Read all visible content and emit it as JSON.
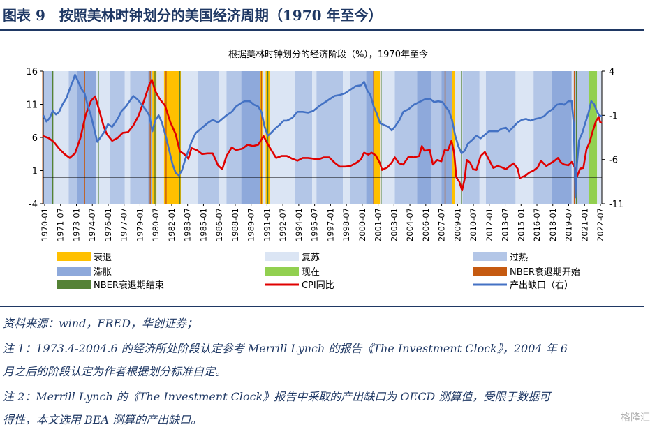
{
  "figure": {
    "title": "图表 9　按照美林时钟划分的美国经济周期（1970 年至今）"
  },
  "notes": {
    "source": "资料来源：wind，FRED，华创证券；",
    "note1_line1": "注 1：1973.4-2004.6 的经济所处阶段认定参考 Merrill Lynch 的报告《The Investment Clock》，2004 年 6",
    "note1_line2": "月之后的阶段认定为作者根据划分标准自定。",
    "note2_line1": "注 2：Merrill Lynch 的《The Investment Clock》报告中采取的产出缺口为 OECD 测算值，受限于数据可",
    "note2_line2": "得性，本文选用 BEA 测算的产出缺口。"
  },
  "watermark": "格隆汇",
  "colors": {
    "recession": "#ffc000",
    "recovery": "#dbe5f4",
    "overheat": "#b3c6e7",
    "stagflation": "#8ea9db",
    "now": "#92d050",
    "nber_start": "#c55a11",
    "nber_end": "#548235",
    "cpi": "#e00000",
    "output_gap": "#4472c4",
    "text": "#1f3864"
  },
  "chart_data": {
    "type": "line",
    "title": "根据美林时钟划分的经济阶段（%），1970年至今",
    "x_start": 1970.0,
    "x_end": 2022.75,
    "y_left": {
      "min": -4,
      "max": 16,
      "ticks": [
        "16",
        "11",
        "6",
        "1",
        "-4"
      ]
    },
    "y_right": {
      "min": -11,
      "max": 4,
      "ticks": [
        "4",
        "-1",
        "-6",
        "-11"
      ]
    },
    "x_tick_labels": [
      "1970-01",
      "1971-07",
      "1973-01",
      "1974-07",
      "1976-01",
      "1977-07",
      "1979-01",
      "1980-07",
      "1982-01",
      "1983-07",
      "1985-01",
      "1986-07",
      "1988-01",
      "1989-07",
      "1991-01",
      "1992-07",
      "1994-01",
      "1995-07",
      "1997-01",
      "1998-07",
      "2000-01",
      "2001-07",
      "2003-01",
      "2004-07",
      "2006-01",
      "2007-07",
      "2009-01",
      "2010-07",
      "2012-01",
      "2013-07",
      "2015-01",
      "2016-07",
      "2018-01",
      "2019-07",
      "2021-01",
      "2022-07"
    ],
    "legend": [
      {
        "key": "recession",
        "label": "衰退",
        "kind": "box"
      },
      {
        "key": "recovery",
        "label": "复苏",
        "kind": "box"
      },
      {
        "key": "overheat",
        "label": "过热",
        "kind": "box"
      },
      {
        "key": "stagflation",
        "label": "滞胀",
        "kind": "box"
      },
      {
        "key": "now",
        "label": "现在",
        "kind": "box"
      },
      {
        "key": "nber_start",
        "label": "NBER衰退期开始",
        "kind": "box"
      },
      {
        "key": "nber_end",
        "label": "NBER衰退期结束",
        "kind": "box"
      },
      {
        "key": "cpi",
        "label": "CPI同比",
        "kind": "line"
      },
      {
        "key": "output_gap",
        "label": "产出缺口（右）",
        "kind": "line"
      }
    ],
    "phases": [
      {
        "start": 1970.0,
        "end": 1970.9,
        "phase": "overheat"
      },
      {
        "start": 1970.9,
        "end": 1972.4,
        "phase": "recovery"
      },
      {
        "start": 1972.4,
        "end": 1973.2,
        "phase": "overheat"
      },
      {
        "start": 1973.2,
        "end": 1975.0,
        "phase": "stagflation"
      },
      {
        "start": 1975.0,
        "end": 1976.3,
        "phase": "recovery"
      },
      {
        "start": 1976.3,
        "end": 1977.7,
        "phase": "overheat"
      },
      {
        "start": 1977.7,
        "end": 1978.2,
        "phase": "recovery"
      },
      {
        "start": 1978.2,
        "end": 1979.9,
        "phase": "overheat"
      },
      {
        "start": 1979.9,
        "end": 1980.3,
        "phase": "stagflation"
      },
      {
        "start": 1980.3,
        "end": 1980.7,
        "phase": "recession"
      },
      {
        "start": 1980.7,
        "end": 1981.4,
        "phase": "recovery"
      },
      {
        "start": 1981.4,
        "end": 1983.0,
        "phase": "recession"
      },
      {
        "start": 1983.0,
        "end": 1984.6,
        "phase": "recovery"
      },
      {
        "start": 1984.6,
        "end": 1986.6,
        "phase": "overheat"
      },
      {
        "start": 1986.6,
        "end": 1987.3,
        "phase": "recovery"
      },
      {
        "start": 1987.3,
        "end": 1988.7,
        "phase": "overheat"
      },
      {
        "start": 1988.7,
        "end": 1990.5,
        "phase": "stagflation"
      },
      {
        "start": 1990.5,
        "end": 1990.7,
        "phase": "recession"
      },
      {
        "start": 1990.7,
        "end": 1991.0,
        "phase": "recovery"
      },
      {
        "start": 1991.0,
        "end": 1991.4,
        "phase": "recession"
      },
      {
        "start": 1991.4,
        "end": 1993.8,
        "phase": "recovery"
      },
      {
        "start": 1993.8,
        "end": 1995.4,
        "phase": "overheat"
      },
      {
        "start": 1995.4,
        "end": 1995.8,
        "phase": "recovery"
      },
      {
        "start": 1995.8,
        "end": 1998.3,
        "phase": "overheat"
      },
      {
        "start": 1998.3,
        "end": 1999.0,
        "phase": "recovery"
      },
      {
        "start": 1999.0,
        "end": 2000.5,
        "phase": "overheat"
      },
      {
        "start": 2000.5,
        "end": 2001.2,
        "phase": "stagflation"
      },
      {
        "start": 2001.2,
        "end": 2001.8,
        "phase": "recession"
      },
      {
        "start": 2001.8,
        "end": 2003.2,
        "phase": "recovery"
      },
      {
        "start": 2003.2,
        "end": 2005.3,
        "phase": "overheat"
      },
      {
        "start": 2005.3,
        "end": 2006.6,
        "phase": "stagflation"
      },
      {
        "start": 2006.6,
        "end": 2007.6,
        "phase": "overheat"
      },
      {
        "start": 2007.6,
        "end": 2008.6,
        "phase": "stagflation"
      },
      {
        "start": 2008.6,
        "end": 2008.9,
        "phase": "recession"
      },
      {
        "start": 2008.9,
        "end": 2009.6,
        "phase": "recovery"
      },
      {
        "start": 2009.6,
        "end": 2011.2,
        "phase": "overheat"
      },
      {
        "start": 2011.2,
        "end": 2011.8,
        "phase": "recovery"
      },
      {
        "start": 2011.8,
        "end": 2014.6,
        "phase": "overheat"
      },
      {
        "start": 2014.6,
        "end": 2016.3,
        "phase": "recovery"
      },
      {
        "start": 2016.3,
        "end": 2018.0,
        "phase": "overheat"
      },
      {
        "start": 2018.0,
        "end": 2019.9,
        "phase": "stagflation"
      },
      {
        "start": 2019.9,
        "end": 2020.2,
        "phase": "recovery"
      },
      {
        "start": 2020.2,
        "end": 2021.5,
        "phase": "overheat"
      },
      {
        "start": 2021.5,
        "end": 2022.3,
        "phase": "now"
      },
      {
        "start": 2022.3,
        "end": 2022.75,
        "phase": "recovery"
      }
    ],
    "nber_start_dates": [
      1969.95,
      1973.9,
      1980.1,
      1981.6,
      1990.6,
      2001.2,
      2007.95,
      2020.15
    ],
    "nber_end_dates": [
      1970.9,
      1975.2,
      1980.55,
      1982.9,
      1991.2,
      2001.9,
      2009.5,
      2020.35
    ],
    "cpi": [
      [
        1970.0,
        6.2
      ],
      [
        1970.5,
        5.9
      ],
      [
        1971.0,
        5.3
      ],
      [
        1971.5,
        4.3
      ],
      [
        1972.0,
        3.5
      ],
      [
        1972.5,
        2.9
      ],
      [
        1973.0,
        3.6
      ],
      [
        1973.5,
        5.9
      ],
      [
        1974.0,
        9.4
      ],
      [
        1974.5,
        11.5
      ],
      [
        1974.9,
        12.2
      ],
      [
        1975.3,
        10.0
      ],
      [
        1975.7,
        7.7
      ],
      [
        1976.0,
        6.5
      ],
      [
        1976.5,
        5.5
      ],
      [
        1977.0,
        5.9
      ],
      [
        1977.5,
        6.7
      ],
      [
        1978.0,
        6.8
      ],
      [
        1978.5,
        7.8
      ],
      [
        1979.0,
        9.3
      ],
      [
        1979.5,
        11.5
      ],
      [
        1980.0,
        13.9
      ],
      [
        1980.25,
        14.7
      ],
      [
        1980.6,
        12.9
      ],
      [
        1981.0,
        11.8
      ],
      [
        1981.5,
        10.8
      ],
      [
        1982.0,
        8.3
      ],
      [
        1982.5,
        6.5
      ],
      [
        1982.9,
        3.9
      ],
      [
        1983.3,
        3.5
      ],
      [
        1983.7,
        2.8
      ],
      [
        1984.0,
        4.4
      ],
      [
        1984.5,
        4.1
      ],
      [
        1985.0,
        3.5
      ],
      [
        1985.5,
        3.6
      ],
      [
        1986.0,
        3.6
      ],
      [
        1986.5,
        1.8
      ],
      [
        1986.9,
        1.2
      ],
      [
        1987.3,
        3.2
      ],
      [
        1987.8,
        4.5
      ],
      [
        1988.2,
        4.1
      ],
      [
        1988.8,
        4.3
      ],
      [
        1989.3,
        4.9
      ],
      [
        1989.8,
        4.7
      ],
      [
        1990.3,
        4.9
      ],
      [
        1990.8,
        6.2
      ],
      [
        1991.2,
        5.0
      ],
      [
        1991.6,
        3.9
      ],
      [
        1992.0,
        2.9
      ],
      [
        1992.5,
        3.2
      ],
      [
        1993.0,
        3.2
      ],
      [
        1993.5,
        2.8
      ],
      [
        1994.0,
        2.5
      ],
      [
        1994.5,
        2.9
      ],
      [
        1995.0,
        2.9
      ],
      [
        1995.5,
        2.8
      ],
      [
        1996.0,
        2.7
      ],
      [
        1996.5,
        3.0
      ],
      [
        1997.0,
        3.0
      ],
      [
        1997.5,
        2.2
      ],
      [
        1998.0,
        1.6
      ],
      [
        1998.5,
        1.6
      ],
      [
        1999.0,
        1.7
      ],
      [
        1999.5,
        2.1
      ],
      [
        2000.0,
        2.7
      ],
      [
        2000.3,
        3.7
      ],
      [
        2000.7,
        3.4
      ],
      [
        2001.0,
        3.7
      ],
      [
        2001.4,
        3.3
      ],
      [
        2001.8,
        2.1
      ],
      [
        2002.0,
        1.1
      ],
      [
        2002.5,
        1.5
      ],
      [
        2002.9,
        2.2
      ],
      [
        2003.2,
        3.0
      ],
      [
        2003.6,
        2.1
      ],
      [
        2004.0,
        1.9
      ],
      [
        2004.5,
        3.1
      ],
      [
        2005.0,
        3.0
      ],
      [
        2005.5,
        3.2
      ],
      [
        2005.75,
        4.7
      ],
      [
        2006.0,
        4.0
      ],
      [
        2006.5,
        4.1
      ],
      [
        2006.8,
        1.9
      ],
      [
        2007.2,
        2.6
      ],
      [
        2007.6,
        2.4
      ],
      [
        2007.9,
        4.1
      ],
      [
        2008.2,
        4.0
      ],
      [
        2008.55,
        5.5
      ],
      [
        2008.8,
        3.7
      ],
      [
        2009.0,
        0.0
      ],
      [
        2009.3,
        -0.7
      ],
      [
        2009.55,
        -2.0
      ],
      [
        2009.8,
        -0.2
      ],
      [
        2010.0,
        2.6
      ],
      [
        2010.3,
        2.2
      ],
      [
        2010.6,
        1.2
      ],
      [
        2010.9,
        1.1
      ],
      [
        2011.3,
        3.2
      ],
      [
        2011.7,
        3.8
      ],
      [
        2012.0,
        2.9
      ],
      [
        2012.5,
        1.4
      ],
      [
        2012.9,
        1.7
      ],
      [
        2013.3,
        1.5
      ],
      [
        2013.7,
        1.2
      ],
      [
        2014.0,
        1.6
      ],
      [
        2014.4,
        2.1
      ],
      [
        2014.8,
        1.3
      ],
      [
        2015.0,
        -0.1
      ],
      [
        2015.5,
        0.2
      ],
      [
        2015.9,
        0.7
      ],
      [
        2016.3,
        1.0
      ],
      [
        2016.7,
        1.5
      ],
      [
        2017.0,
        2.5
      ],
      [
        2017.5,
        1.7
      ],
      [
        2017.9,
        2.1
      ],
      [
        2018.3,
        2.5
      ],
      [
        2018.6,
        2.9
      ],
      [
        2018.9,
        2.2
      ],
      [
        2019.2,
        1.9
      ],
      [
        2019.6,
        1.8
      ],
      [
        2019.9,
        2.3
      ],
      [
        2020.2,
        1.5
      ],
      [
        2020.4,
        0.1
      ],
      [
        2020.7,
        1.3
      ],
      [
        2021.0,
        1.4
      ],
      [
        2021.3,
        4.2
      ],
      [
        2021.6,
        5.3
      ],
      [
        2021.9,
        7.0
      ],
      [
        2022.2,
        8.5
      ],
      [
        2022.45,
        9.1
      ],
      [
        2022.6,
        8.3
      ],
      [
        2022.75,
        8.2
      ]
    ],
    "output_gap": [
      [
        1970.0,
        -1.0
      ],
      [
        1970.3,
        -1.7
      ],
      [
        1970.6,
        -1.3
      ],
      [
        1970.9,
        -0.5
      ],
      [
        1971.2,
        -0.9
      ],
      [
        1971.5,
        -0.6
      ],
      [
        1971.8,
        0.2
      ],
      [
        1972.2,
        1.0
      ],
      [
        1972.5,
        2.0
      ],
      [
        1972.8,
        2.9
      ],
      [
        1973.0,
        3.6
      ],
      [
        1973.3,
        2.8
      ],
      [
        1973.6,
        2.0
      ],
      [
        1973.9,
        1.5
      ],
      [
        1974.2,
        0.1
      ],
      [
        1974.5,
        -1.0
      ],
      [
        1974.8,
        -2.5
      ],
      [
        1975.1,
        -4.0
      ],
      [
        1975.4,
        -3.5
      ],
      [
        1975.8,
        -2.8
      ],
      [
        1976.1,
        -2.0
      ],
      [
        1976.5,
        -2.3
      ],
      [
        1976.8,
        -1.8
      ],
      [
        1977.1,
        -1.2
      ],
      [
        1977.4,
        -0.5
      ],
      [
        1977.8,
        0.0
      ],
      [
        1978.1,
        0.5
      ],
      [
        1978.5,
        1.2
      ],
      [
        1978.9,
        0.8
      ],
      [
        1979.3,
        0.2
      ],
      [
        1979.7,
        -0.4
      ],
      [
        1980.0,
        -1.0
      ],
      [
        1980.3,
        -2.8
      ],
      [
        1980.6,
        -1.5
      ],
      [
        1980.9,
        -1.0
      ],
      [
        1981.2,
        -1.8
      ],
      [
        1981.6,
        -3.5
      ],
      [
        1981.9,
        -5.0
      ],
      [
        1982.2,
        -6.5
      ],
      [
        1982.5,
        -7.5
      ],
      [
        1982.8,
        -7.8
      ],
      [
        1983.1,
        -7.2
      ],
      [
        1983.4,
        -6.0
      ],
      [
        1983.7,
        -5.0
      ],
      [
        1984.0,
        -4.0
      ],
      [
        1984.4,
        -3.0
      ],
      [
        1984.8,
        -2.6
      ],
      [
        1985.2,
        -2.2
      ],
      [
        1985.6,
        -1.8
      ],
      [
        1986.0,
        -1.5
      ],
      [
        1986.5,
        -1.8
      ],
      [
        1986.9,
        -1.4
      ],
      [
        1987.3,
        -1.0
      ],
      [
        1987.8,
        -0.6
      ],
      [
        1988.2,
        0.0
      ],
      [
        1988.7,
        0.4
      ],
      [
        1989.0,
        0.6
      ],
      [
        1989.5,
        0.6
      ],
      [
        1989.9,
        0.2
      ],
      [
        1990.3,
        0.0
      ],
      [
        1990.6,
        -0.6
      ],
      [
        1990.9,
        -2.3
      ],
      [
        1991.2,
        -3.3
      ],
      [
        1991.5,
        -3.0
      ],
      [
        1991.9,
        -2.5
      ],
      [
        1992.3,
        -2.1
      ],
      [
        1992.7,
        -1.6
      ],
      [
        1993.0,
        -1.6
      ],
      [
        1993.5,
        -1.3
      ],
      [
        1994.0,
        -0.6
      ],
      [
        1994.5,
        -0.6
      ],
      [
        1995.0,
        -0.7
      ],
      [
        1995.5,
        -0.5
      ],
      [
        1996.0,
        0.0
      ],
      [
        1996.5,
        0.4
      ],
      [
        1997.0,
        0.8
      ],
      [
        1997.5,
        1.2
      ],
      [
        1998.0,
        1.3
      ],
      [
        1998.5,
        1.5
      ],
      [
        1999.0,
        1.9
      ],
      [
        1999.5,
        2.3
      ],
      [
        2000.0,
        2.4
      ],
      [
        2000.3,
        2.8
      ],
      [
        2000.6,
        1.8
      ],
      [
        2000.9,
        1.3
      ],
      [
        2001.2,
        0.0
      ],
      [
        2001.5,
        -0.8
      ],
      [
        2001.8,
        -1.9
      ],
      [
        2002.2,
        -2.1
      ],
      [
        2002.6,
        -2.3
      ],
      [
        2002.9,
        -2.7
      ],
      [
        2003.2,
        -2.3
      ],
      [
        2003.6,
        -1.6
      ],
      [
        2004.0,
        -0.6
      ],
      [
        2004.5,
        -0.3
      ],
      [
        2005.0,
        0.2
      ],
      [
        2005.5,
        0.5
      ],
      [
        2006.0,
        0.8
      ],
      [
        2006.5,
        0.9
      ],
      [
        2006.9,
        0.5
      ],
      [
        2007.3,
        0.6
      ],
      [
        2007.7,
        0.5
      ],
      [
        2008.0,
        0.0
      ],
      [
        2008.3,
        -0.5
      ],
      [
        2008.6,
        -1.5
      ],
      [
        2008.9,
        -3.3
      ],
      [
        2009.2,
        -4.5
      ],
      [
        2009.5,
        -5.3
      ],
      [
        2009.8,
        -5.0
      ],
      [
        2010.1,
        -4.2
      ],
      [
        2010.5,
        -3.8
      ],
      [
        2010.9,
        -3.3
      ],
      [
        2011.3,
        -3.6
      ],
      [
        2011.7,
        -3.2
      ],
      [
        2012.1,
        -2.8
      ],
      [
        2012.5,
        -2.8
      ],
      [
        2012.9,
        -2.8
      ],
      [
        2013.3,
        -2.5
      ],
      [
        2013.7,
        -2.4
      ],
      [
        2014.0,
        -2.8
      ],
      [
        2014.4,
        -2.3
      ],
      [
        2014.8,
        -1.8
      ],
      [
        2015.2,
        -1.5
      ],
      [
        2015.6,
        -1.4
      ],
      [
        2016.0,
        -1.6
      ],
      [
        2016.5,
        -1.4
      ],
      [
        2016.9,
        -1.3
      ],
      [
        2017.3,
        -1.1
      ],
      [
        2017.7,
        -0.6
      ],
      [
        2018.1,
        -0.3
      ],
      [
        2018.5,
        0.2
      ],
      [
        2018.9,
        0.3
      ],
      [
        2019.2,
        0.2
      ],
      [
        2019.6,
        0.6
      ],
      [
        2019.9,
        0.6
      ],
      [
        2020.1,
        -2.0
      ],
      [
        2020.25,
        -10.3
      ],
      [
        2020.4,
        -6.5
      ],
      [
        2020.6,
        -3.8
      ],
      [
        2020.9,
        -3.0
      ],
      [
        2021.2,
        -1.8
      ],
      [
        2021.5,
        -0.7
      ],
      [
        2021.75,
        0.6
      ],
      [
        2022.0,
        0.3
      ],
      [
        2022.3,
        -0.6
      ],
      [
        2022.5,
        -1.0
      ],
      [
        2022.75,
        -1.1
      ]
    ]
  }
}
